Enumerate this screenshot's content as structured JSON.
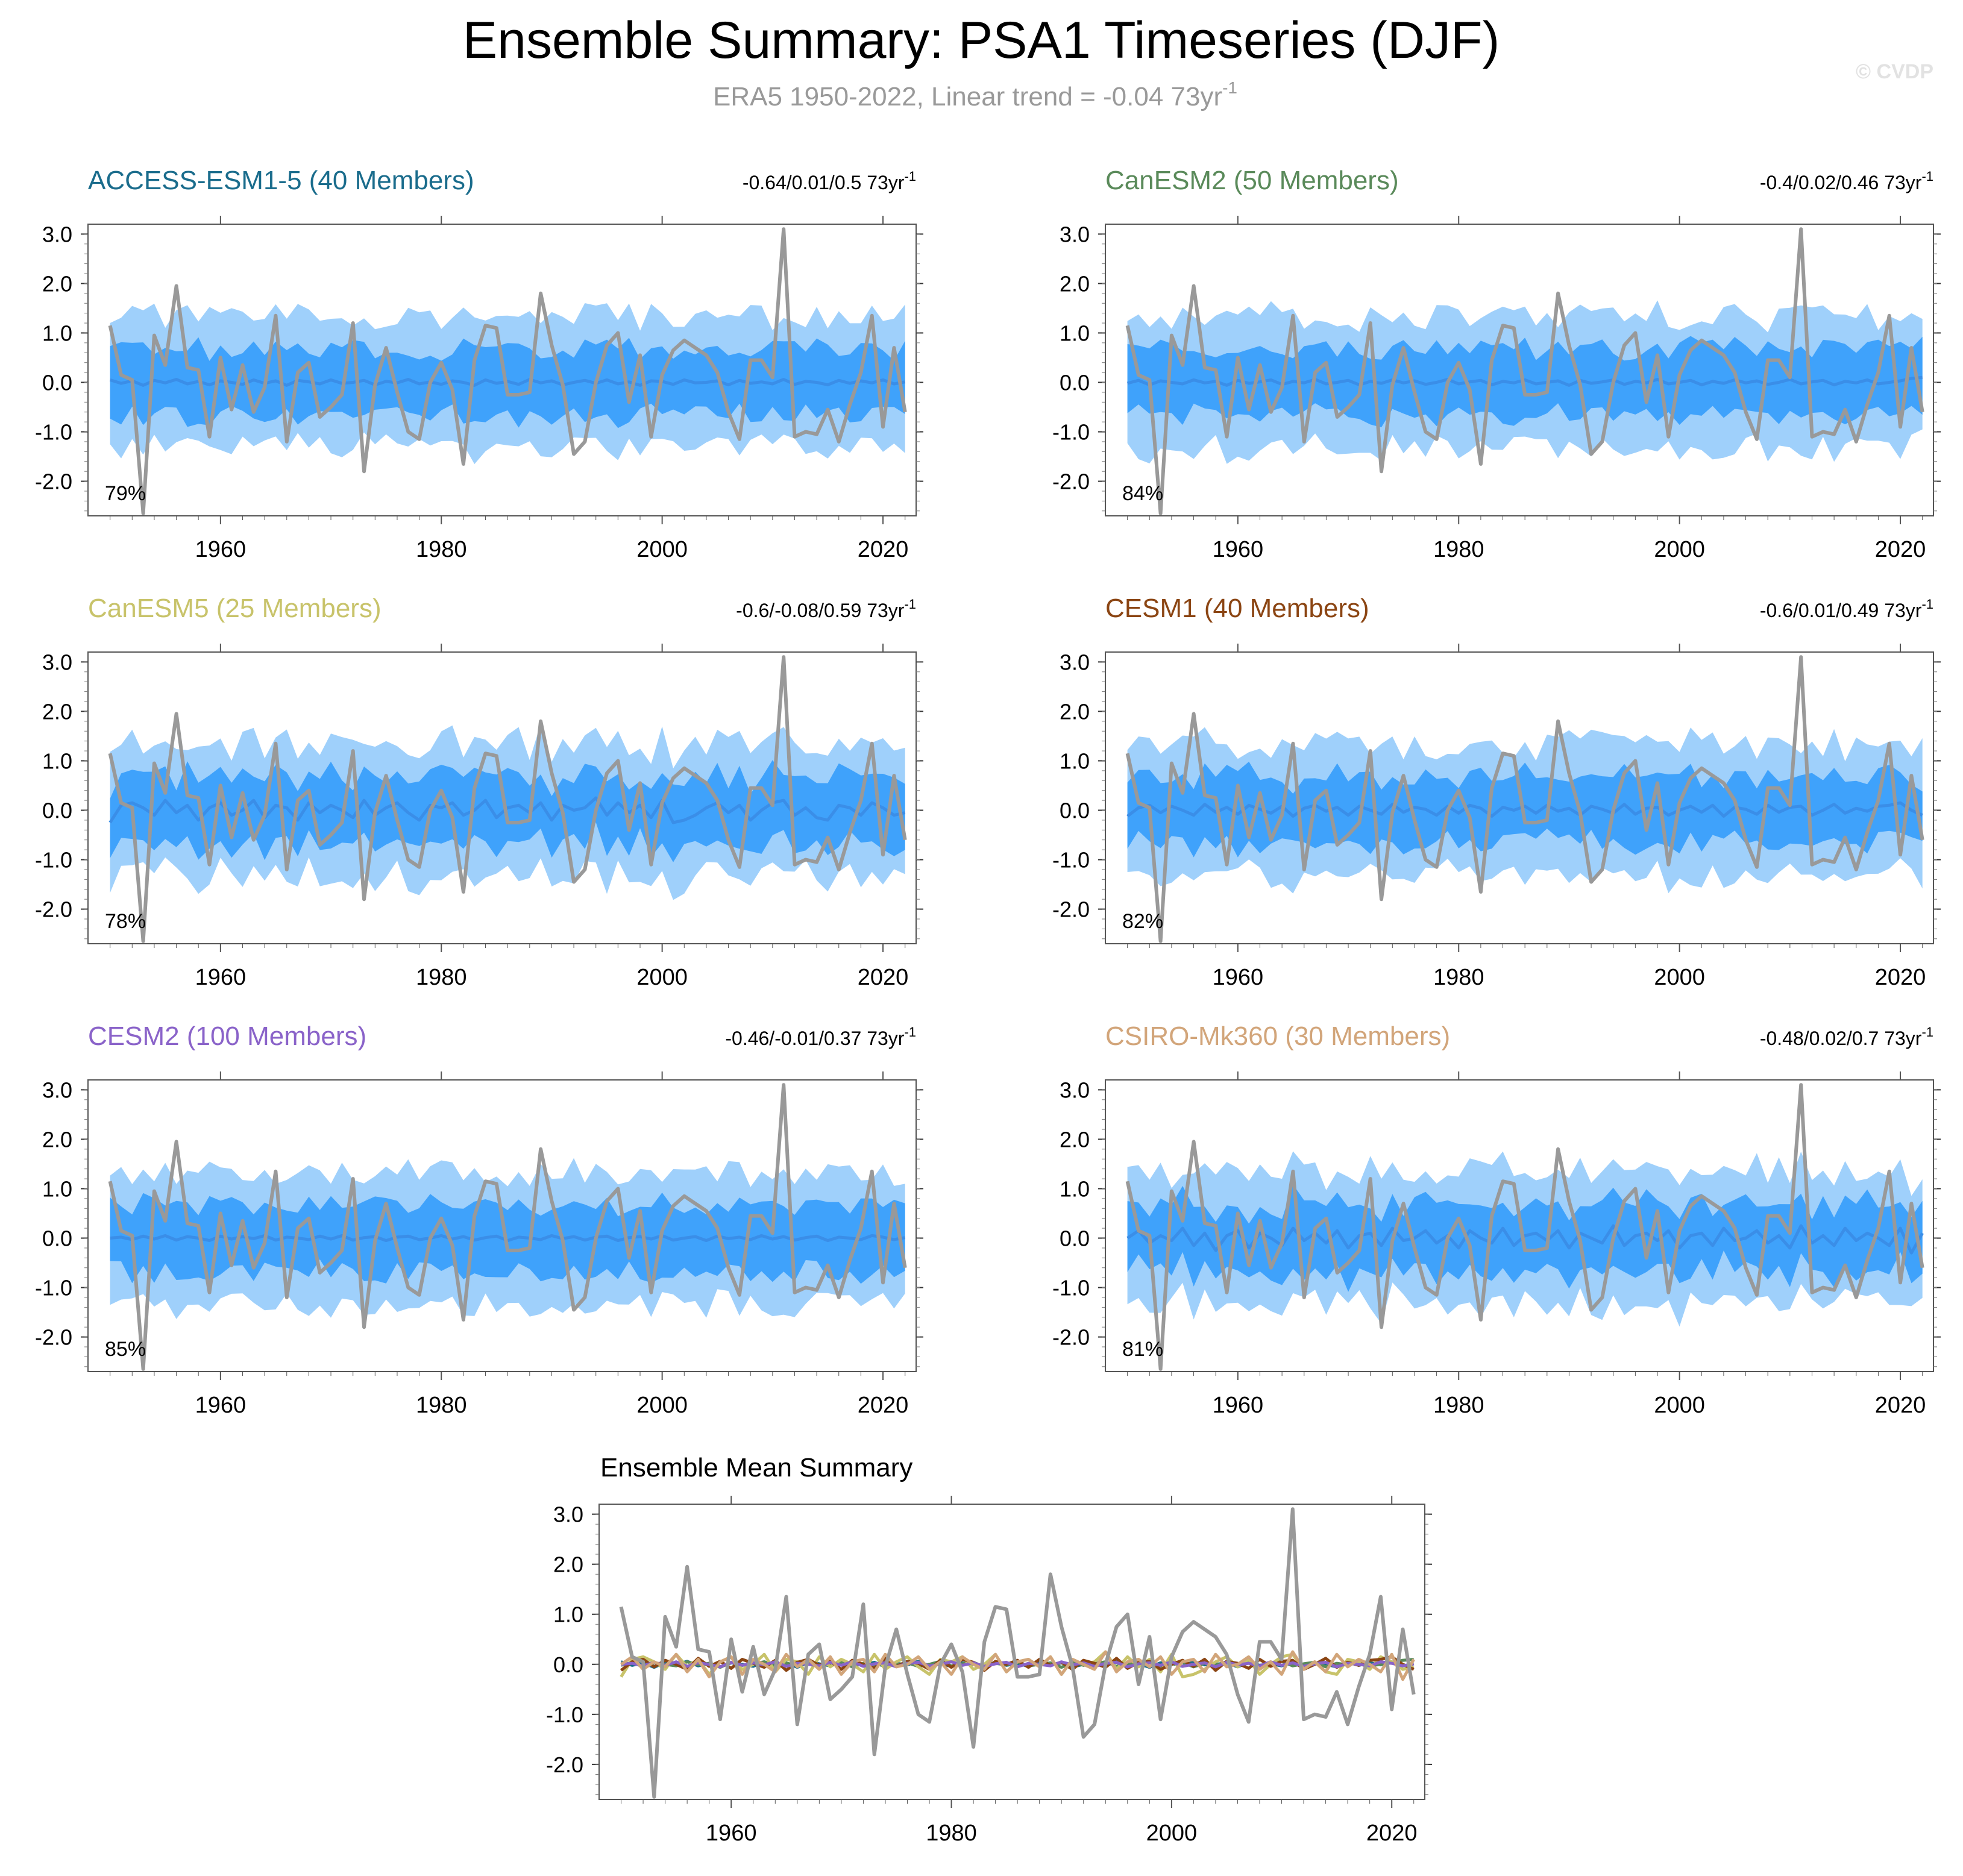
{
  "header": {
    "title": "Ensemble Summary: PSA1 Timeseries (DJF)",
    "subtitle_main": "ERA5 1950-2022, Linear trend = -0.04 73yr",
    "subtitle_sup": "-1",
    "watermark": "© CVDP"
  },
  "colors": {
    "obs": "#999999",
    "mean_line": "#3a8ee8",
    "band_outer": "#9fd0fb",
    "band_inner": "#3fa2fb"
  },
  "chart_data": {
    "type": "line",
    "x_range": [
      1950,
      2022
    ],
    "xlim": [
      1948,
      2023
    ],
    "ylim": [
      -2.7,
      3.2
    ],
    "x_ticks": [
      1960,
      1980,
      2000,
      2020
    ],
    "y_ticks": [
      3.0,
      2.0,
      1.0,
      0.0,
      -1.0,
      -2.0
    ],
    "y_tick_labels": [
      "3.0",
      "2.0",
      "1.0",
      "0.0",
      "-1.0",
      "-2.0"
    ],
    "observed": {
      "name": "ERA5",
      "values": [
        1.15,
        0.15,
        0.05,
        -2.65,
        0.95,
        0.35,
        1.95,
        0.3,
        0.25,
        -1.1,
        0.5,
        -0.55,
        0.35,
        -0.6,
        -0.1,
        1.35,
        -1.2,
        0.2,
        0.4,
        -0.7,
        -0.5,
        -0.25,
        1.2,
        -1.8,
        -0.05,
        0.7,
        -0.2,
        -1.0,
        -1.15,
        0.0,
        0.4,
        -0.15,
        -1.65,
        0.45,
        1.15,
        1.1,
        -0.25,
        -0.25,
        -0.2,
        1.8,
        0.75,
        -0.05,
        -1.45,
        -1.2,
        0.0,
        0.75,
        1.0,
        -0.4,
        0.55,
        -1.1,
        0.15,
        0.65,
        0.85,
        0.7,
        0.55,
        0.2,
        -0.6,
        -1.15,
        0.45,
        0.45,
        0.1,
        3.1,
        -1.1,
        -1.0,
        -1.05,
        -0.55,
        -1.2,
        -0.45,
        0.2,
        1.35,
        -0.9,
        0.7,
        -0.6
      ]
    },
    "panels": [
      {
        "title": "ACCESS-ESM1-5 (40 Members)",
        "color": "#1a6c8c",
        "trend": "-0.64/0.01/0.5 73yr",
        "trend_sup": "-1",
        "pct": "79%",
        "mean": [
          0.05,
          -0.02,
          0.03,
          -0.06,
          0.04,
          -0.01,
          0.06,
          -0.03,
          0.02,
          -0.05,
          0.03,
          0.0,
          -0.04,
          0.05,
          -0.02,
          0.03,
          -0.06,
          0.04,
          0.01,
          -0.03,
          0.05,
          -0.02,
          0.0,
          0.04,
          -0.05,
          0.02,
          -0.01,
          0.06,
          -0.03,
          0.01,
          -0.04,
          0.03,
          0.0,
          -0.06,
          0.05,
          -0.02,
          0.02,
          -0.04,
          0.06,
          -0.01,
          0.03,
          -0.05,
          0.0,
          0.04,
          -0.02,
          0.05,
          -0.03,
          0.01,
          -0.06,
          0.03,
          0.02,
          -0.04,
          0.05,
          -0.01,
          0.0,
          0.03,
          -0.05,
          0.04,
          -0.02,
          0.01,
          -0.03,
          0.06,
          -0.04,
          0.02,
          0.0,
          -0.05,
          0.04,
          -0.02,
          0.03,
          -0.01,
          0.05,
          -0.03,
          0.01
        ]
      },
      {
        "title": "CanESM2 (50 Members)",
        "color": "#5a8a5a",
        "trend": "-0.4/0.02/0.46 73yr",
        "trend_sup": "-1",
        "pct": "84%",
        "mean": [
          -0.02,
          0.04,
          -0.05,
          0.03,
          0.0,
          -0.03,
          0.05,
          -0.01,
          0.02,
          -0.06,
          0.04,
          -0.02,
          0.01,
          0.05,
          -0.04,
          0.02,
          -0.01,
          0.06,
          -0.03,
          0.0,
          0.04,
          -0.05,
          0.02,
          -0.02,
          0.05,
          -0.01,
          0.03,
          -0.04,
          0.0,
          0.06,
          -0.03,
          0.01,
          0.04,
          -0.05,
          0.02,
          -0.01,
          0.05,
          -0.03,
          0.0,
          0.03,
          -0.06,
          0.04,
          -0.02,
          0.01,
          0.05,
          -0.04,
          0.02,
          -0.01,
          0.06,
          -0.03,
          0.0,
          0.04,
          -0.05,
          0.02,
          -0.02,
          0.05,
          -0.01,
          0.03,
          -0.04,
          0.0,
          0.06,
          -0.03,
          0.01,
          0.04,
          -0.05,
          0.02,
          -0.01,
          0.05,
          -0.03,
          0.0,
          0.03,
          0.08,
          0.1
        ]
      },
      {
        "title": "CanESM5 (25 Members)",
        "color": "#c8c36a",
        "trend": "-0.6/-0.08/0.59 73yr",
        "trend_sup": "-1",
        "pct": "78%",
        "mean": [
          -0.25,
          0.1,
          0.15,
          0.05,
          -0.1,
          0.2,
          -0.05,
          0.1,
          -0.2,
          0.05,
          0.15,
          -0.1,
          0.0,
          0.2,
          -0.15,
          0.1,
          0.05,
          -0.2,
          0.15,
          -0.05,
          0.1,
          0.0,
          -0.15,
          0.2,
          -0.1,
          0.05,
          0.15,
          -0.05,
          -0.2,
          0.1,
          0.05,
          0.15,
          -0.1,
          0.0,
          0.2,
          -0.15,
          0.05,
          0.1,
          -0.05,
          0.15,
          -0.2,
          0.1,
          0.0,
          0.05,
          0.25,
          -0.1,
          0.15,
          -0.05,
          0.1,
          -0.15,
          0.2,
          -0.25,
          -0.2,
          -0.1,
          0.05,
          0.15,
          -0.05,
          0.1,
          -0.2,
          0.0,
          0.15,
          0.2,
          -0.1,
          0.05,
          -0.15,
          -0.2,
          0.1,
          0.05,
          -0.1,
          0.15,
          0.05,
          -0.1,
          -0.05
        ]
      },
      {
        "title": "CESM1 (40 Members)",
        "color": "#8b4513",
        "trend": "-0.6/0.01/0.49 73yr",
        "trend_sup": "-1",
        "pct": "82%",
        "mean": [
          -0.12,
          0.05,
          0.1,
          -0.05,
          0.08,
          0.0,
          -0.1,
          0.12,
          -0.04,
          0.06,
          -0.08,
          0.1,
          0.02,
          -0.06,
          0.08,
          -0.12,
          0.04,
          0.1,
          -0.02,
          0.06,
          -0.1,
          0.08,
          0.0,
          -0.08,
          0.12,
          -0.04,
          0.06,
          0.02,
          -0.1,
          0.08,
          -0.06,
          0.1,
          0.04,
          -0.12,
          0.06,
          0.0,
          0.08,
          -0.06,
          0.1,
          -0.02,
          0.04,
          -0.1,
          0.08,
          0.02,
          -0.06,
          0.12,
          -0.08,
          0.04,
          0.06,
          -0.1,
          0.0,
          0.08,
          -0.04,
          0.1,
          -0.12,
          0.06,
          0.02,
          -0.08,
          0.1,
          -0.04,
          0.06,
          0.08,
          -0.1,
          0.0,
          0.12,
          -0.06,
          0.04,
          -0.02,
          0.08,
          0.1,
          0.15,
          0.0,
          -0.1
        ]
      },
      {
        "title": "CESM2 (100 Members)",
        "color": "#8a63c9",
        "trend": "-0.46/-0.01/0.37 73yr",
        "trend_sup": "-1",
        "pct": "85%",
        "mean": [
          0.0,
          0.02,
          -0.03,
          0.04,
          -0.02,
          0.05,
          -0.04,
          0.03,
          0.0,
          -0.05,
          0.04,
          -0.02,
          0.03,
          -0.01,
          0.05,
          -0.04,
          0.02,
          0.0,
          -0.03,
          0.04,
          -0.02,
          0.05,
          -0.04,
          0.01,
          0.03,
          -0.05,
          0.02,
          0.04,
          -0.03,
          0.0,
          0.05,
          -0.02,
          0.03,
          -0.04,
          0.01,
          0.04,
          -0.05,
          0.02,
          0.0,
          -0.03,
          0.05,
          -0.01,
          0.03,
          -0.04,
          0.02,
          0.04,
          -0.05,
          0.01,
          0.03,
          -0.02,
          0.05,
          -0.04,
          0.0,
          0.03,
          -0.05,
          0.04,
          -0.01,
          0.02,
          -0.03,
          0.05,
          -0.02,
          0.03,
          -0.04,
          0.01,
          0.04,
          -0.05,
          0.02,
          0.0,
          -0.03,
          0.05,
          0.02,
          -0.03,
          0.01
        ]
      },
      {
        "title": "CSIRO-Mk360 (30 Members)",
        "color": "#d2a57a",
        "trend": "-0.48/0.02/0.7 73yr",
        "trend_sup": "-1",
        "pct": "81%",
        "mean": [
          0.0,
          0.15,
          -0.1,
          0.05,
          -0.05,
          0.2,
          -0.15,
          0.1,
          -0.25,
          0.05,
          0.15,
          -0.2,
          0.1,
          0.0,
          -0.15,
          0.2,
          -0.05,
          0.1,
          -0.1,
          0.15,
          -0.2,
          0.05,
          0.1,
          -0.15,
          0.2,
          -0.05,
          0.0,
          0.15,
          -0.1,
          0.05,
          -0.2,
          0.15,
          0.0,
          -0.1,
          0.2,
          -0.15,
          0.05,
          0.1,
          -0.05,
          0.15,
          -0.2,
          0.1,
          0.0,
          -0.1,
          0.25,
          -0.15,
          0.05,
          0.1,
          -0.05,
          0.15,
          -0.2,
          0.05,
          0.1,
          -0.15,
          0.2,
          -0.05,
          0.0,
          0.15,
          -0.1,
          0.05,
          -0.2,
          0.25,
          -0.1,
          0.05,
          -0.15,
          0.2,
          -0.05,
          0.1,
          0.0,
          -0.15,
          0.2,
          -0.3,
          0.1
        ]
      }
    ],
    "summary": {
      "title": "Ensemble Mean Summary"
    }
  }
}
